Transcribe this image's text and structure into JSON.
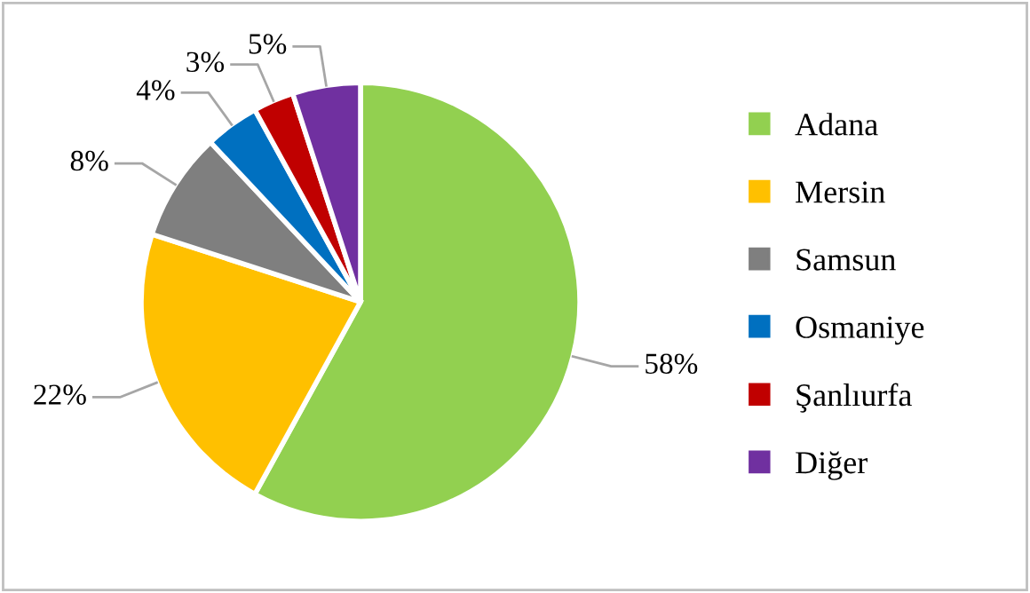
{
  "chart_data": {
    "type": "pie",
    "categories": [
      "Adana",
      "Mersin",
      "Samsun",
      "Osmaniye",
      "Şanlıurfa",
      "Diğer"
    ],
    "values": [
      58,
      22,
      8,
      4,
      3,
      5
    ],
    "colors": [
      "#92d050",
      "#ffc000",
      "#7f7f7f",
      "#0070c0",
      "#c00000",
      "#7030a0"
    ],
    "value_labels": [
      "58%",
      "22%",
      "8%",
      "4%",
      "3%",
      "5%"
    ],
    "legend": "right"
  }
}
